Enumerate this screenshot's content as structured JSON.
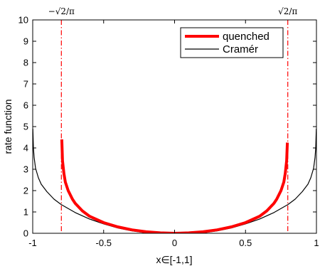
{
  "chart_data": {
    "type": "line",
    "xlabel": "x∈[-1,1]",
    "ylabel": "rate function",
    "xlim": [
      -1,
      1
    ],
    "ylim": [
      0,
      10
    ],
    "xticks": [
      -1,
      -0.5,
      0,
      0.5,
      1
    ],
    "xtick_labels": [
      "-1",
      "-0.5",
      "0",
      "0.5",
      "1"
    ],
    "yticks": [
      0,
      1,
      2,
      3,
      4,
      5,
      6,
      7,
      8,
      9,
      10
    ],
    "ytick_labels": [
      "0",
      "1",
      "2",
      "3",
      "4",
      "5",
      "6",
      "7",
      "8",
      "9",
      "10"
    ],
    "grid": false,
    "legend_position": "top-right",
    "vertical_markers": [
      {
        "x": -0.798,
        "label": "−√2/π",
        "color": "#ff0000",
        "style": "dash-dot"
      },
      {
        "x": 0.798,
        "label": "√2/π",
        "color": "#ff0000",
        "style": "dash-dot"
      }
    ],
    "series": [
      {
        "name": "quenched",
        "color": "#ff0000",
        "width": 4,
        "x": [
          -0.795,
          -0.79,
          -0.78,
          -0.77,
          -0.75,
          -0.72,
          -0.7,
          -0.65,
          -0.6,
          -0.5,
          -0.4,
          -0.3,
          -0.2,
          -0.1,
          0,
          0.1,
          0.2,
          0.3,
          0.4,
          0.5,
          0.6,
          0.65,
          0.7,
          0.72,
          0.75,
          0.77,
          0.78,
          0.79,
          0.795
        ],
        "y": [
          4.4,
          3.4,
          2.8,
          2.4,
          2.0,
          1.6,
          1.4,
          1.05,
          0.8,
          0.5,
          0.3,
          0.16,
          0.07,
          0.02,
          0.0,
          0.02,
          0.07,
          0.16,
          0.3,
          0.5,
          0.8,
          1.05,
          1.4,
          1.6,
          2.0,
          2.4,
          2.8,
          3.4,
          4.25
        ]
      },
      {
        "name": "Cramér",
        "color": "#000000",
        "width": 1.2,
        "x": [
          -0.999,
          -0.995,
          -0.99,
          -0.98,
          -0.96,
          -0.94,
          -0.9,
          -0.85,
          -0.8,
          -0.7,
          -0.6,
          -0.5,
          -0.4,
          -0.3,
          -0.2,
          -0.1,
          0,
          0.1,
          0.2,
          0.3,
          0.4,
          0.5,
          0.6,
          0.7,
          0.8,
          0.85,
          0.9,
          0.94,
          0.96,
          0.98,
          0.99,
          0.995,
          0.999
        ],
        "y": [
          4.9,
          4.0,
          3.55,
          3.05,
          2.6,
          2.3,
          1.95,
          1.6,
          1.35,
          0.97,
          0.67,
          0.44,
          0.25,
          0.11,
          0.02,
          -0.04,
          -0.06,
          -0.04,
          0.02,
          0.11,
          0.25,
          0.44,
          0.67,
          0.97,
          1.35,
          1.6,
          1.95,
          2.3,
          2.6,
          3.05,
          3.55,
          4.0,
          4.9
        ]
      }
    ]
  }
}
